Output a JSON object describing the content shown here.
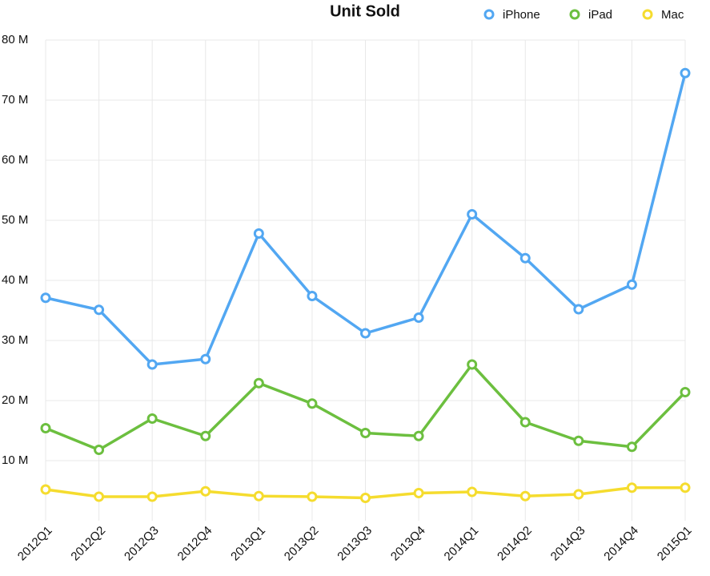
{
  "chart_data": {
    "type": "line",
    "title": "Unit Sold",
    "categories": [
      "2012Q1",
      "2012Q2",
      "2012Q3",
      "2012Q4",
      "2013Q1",
      "2013Q2",
      "2013Q3",
      "2013Q4",
      "2014Q1",
      "2014Q2",
      "2014Q3",
      "2014Q4",
      "2015Q1"
    ],
    "series": [
      {
        "name": "iPhone",
        "color": "#52a7f2",
        "values": [
          37.1,
          35.1,
          26.0,
          26.9,
          47.8,
          37.4,
          31.2,
          33.8,
          51.0,
          43.7,
          35.2,
          39.3,
          74.5
        ]
      },
      {
        "name": "iPad",
        "color": "#6cbf3f",
        "values": [
          15.4,
          11.8,
          17.0,
          14.1,
          22.9,
          19.5,
          14.6,
          14.1,
          26.0,
          16.4,
          13.3,
          12.3,
          21.4
        ]
      },
      {
        "name": "Mac",
        "color": "#f5dc2e",
        "values": [
          5.2,
          4.0,
          4.0,
          4.9,
          4.1,
          4.0,
          3.8,
          4.6,
          4.8,
          4.1,
          4.4,
          5.5,
          5.5
        ]
      }
    ],
    "ylim": [
      0,
      80
    ],
    "yticks": [
      {
        "value": 10,
        "label": "10 M"
      },
      {
        "value": 20,
        "label": "20 M"
      },
      {
        "value": 30,
        "label": "30 M"
      },
      {
        "value": 40,
        "label": "40 M"
      },
      {
        "value": 50,
        "label": "50 M"
      },
      {
        "value": 60,
        "label": "60 M"
      },
      {
        "value": 70,
        "label": "70 M"
      },
      {
        "value": 80,
        "label": "80 M"
      }
    ],
    "grid": true,
    "legend": "top-right"
  }
}
